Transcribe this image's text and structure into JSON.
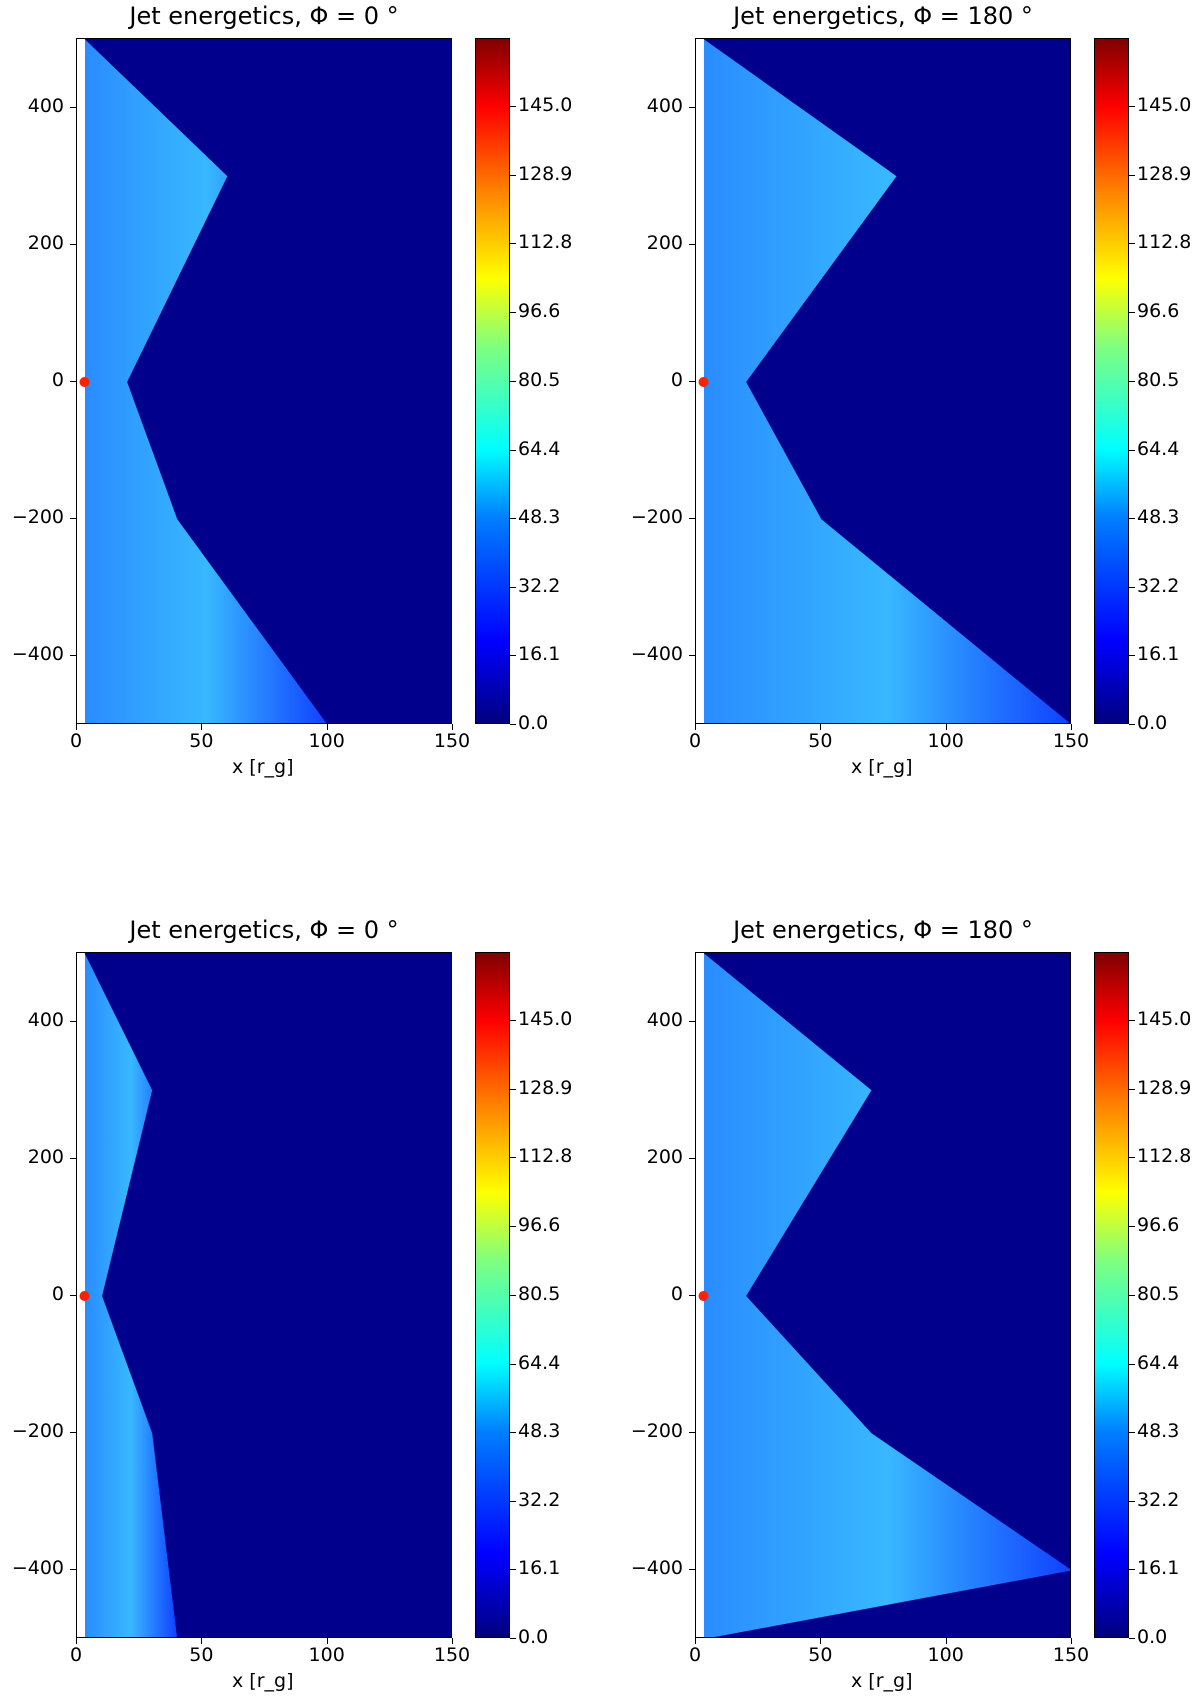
{
  "chart_data": [
    {
      "type": "heatmap",
      "title": "Jet energetics, Φ = 0 °",
      "xlabel": "x [r_g]",
      "ylabel": "",
      "xlim": [
        0,
        150
      ],
      "ylim": [
        -500,
        500
      ],
      "xticks": [
        "0",
        "50",
        "100",
        "150"
      ],
      "yticks": [
        "400",
        "200",
        "0",
        "−200",
        "−400"
      ],
      "colorbar": {
        "min": 0.0,
        "max": 161,
        "ticks": [
          "0.0",
          "16.1",
          "32.2",
          "48.3",
          "64.4",
          "80.5",
          "96.6",
          "112.8",
          "128.9",
          "145.0"
        ]
      },
      "jet_edge": [
        [
          3,
          500
        ],
        [
          60,
          300
        ],
        [
          20,
          0
        ],
        [
          40,
          -200
        ],
        [
          100,
          -500
        ]
      ]
    },
    {
      "type": "heatmap",
      "title": "Jet energetics, Φ = 180 °",
      "xlabel": "x [r_g]",
      "ylabel": "",
      "xlim": [
        0,
        150
      ],
      "ylim": [
        -500,
        500
      ],
      "xticks": [
        "0",
        "50",
        "100",
        "150"
      ],
      "yticks": [
        "400",
        "200",
        "0",
        "−200",
        "−400"
      ],
      "colorbar": {
        "min": 0.0,
        "max": 161,
        "ticks": [
          "0.0",
          "16.1",
          "32.2",
          "48.3",
          "64.4",
          "80.5",
          "96.6",
          "112.8",
          "128.9",
          "145.0"
        ]
      },
      "jet_edge": [
        [
          3,
          500
        ],
        [
          80,
          300
        ],
        [
          20,
          0
        ],
        [
          50,
          -200
        ],
        [
          150,
          -500
        ]
      ]
    },
    {
      "type": "heatmap",
      "title": "Jet energetics, Φ = 0 °",
      "xlabel": "x [r_g]",
      "ylabel": "",
      "xlim": [
        0,
        150
      ],
      "ylim": [
        -500,
        500
      ],
      "xticks": [
        "0",
        "50",
        "100",
        "150"
      ],
      "yticks": [
        "400",
        "200",
        "0",
        "−200",
        "−400"
      ],
      "colorbar": {
        "min": 0.0,
        "max": 161,
        "ticks": [
          "0.0",
          "16.1",
          "32.2",
          "48.3",
          "64.4",
          "80.5",
          "96.6",
          "112.8",
          "128.9",
          "145.0"
        ]
      },
      "jet_edge": [
        [
          3,
          500
        ],
        [
          30,
          300
        ],
        [
          10,
          0
        ],
        [
          30,
          -200
        ],
        [
          40,
          -500
        ]
      ]
    },
    {
      "type": "heatmap",
      "title": "Jet energetics, Φ = 180 °",
      "xlabel": "x [r_g]",
      "ylabel": "",
      "xlim": [
        0,
        150
      ],
      "ylim": [
        -500,
        500
      ],
      "xticks": [
        "0",
        "50",
        "100",
        "150"
      ],
      "yticks": [
        "400",
        "200",
        "0",
        "−200",
        "−400"
      ],
      "colorbar": {
        "min": 0.0,
        "max": 161,
        "ticks": [
          "0.0",
          "16.1",
          "32.2",
          "48.3",
          "64.4",
          "80.5",
          "96.6",
          "112.8",
          "128.9",
          "145.0"
        ]
      },
      "jet_edge": [
        [
          3,
          500
        ],
        [
          70,
          300
        ],
        [
          20,
          0
        ],
        [
          70,
          -200
        ],
        [
          150,
          -400
        ]
      ]
    }
  ]
}
